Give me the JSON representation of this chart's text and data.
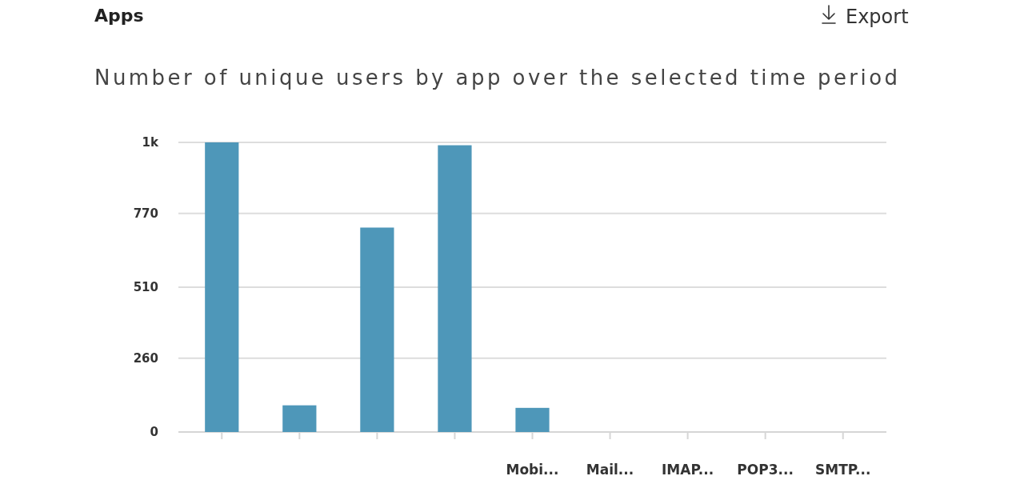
{
  "chart_data": {
    "type": "bar",
    "title": "Apps",
    "subtitle": "Number of unique users by app over the selected time period",
    "annotations": [
      "Export"
    ],
    "categories": [
      null,
      null,
      null,
      null,
      "Mobi...",
      "Mail...",
      "IMAP...",
      "POP3...",
      "SMTP..."
    ],
    "values": [
      1020,
      94,
      720,
      1010,
      85,
      0,
      0,
      0,
      0
    ],
    "color": "#4e97b9",
    "ylim": [
      0,
      1020
    ],
    "yticks": [
      0,
      260,
      510,
      770,
      {
        "value": 1020,
        "label": "1k"
      }
    ],
    "grid": "y"
  }
}
